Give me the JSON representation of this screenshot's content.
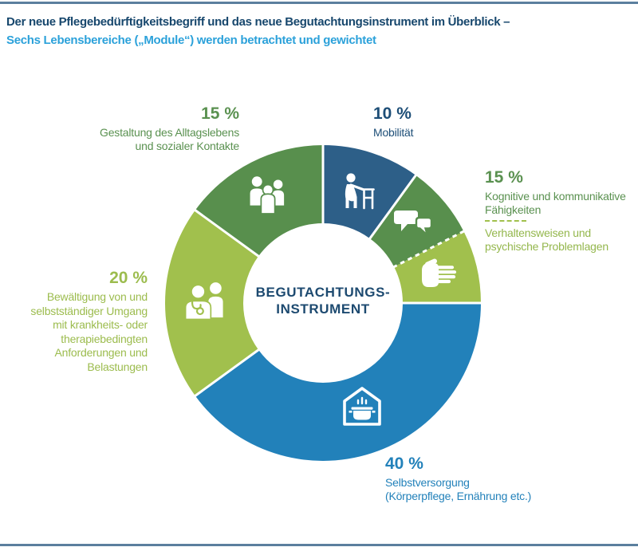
{
  "header": {
    "title_line1": "Der neue Pflegebedürftigkeitsbegriff und das neue Begutachtungsinstrument im Überblick –",
    "title_line2": "Sechs Lebensbereiche („Module“) werden betrachtet und gewichtet"
  },
  "rules": {
    "color": "#5b7f9e"
  },
  "chart_data": {
    "type": "pie",
    "subtype": "donut",
    "title": "Der neue Pflegebedürftigkeitsbegriff und das neue Begutachtungsinstrument im Überblick – Sechs Lebensbereiche („Module“) werden betrachtet und gewichtet",
    "center_label": {
      "line1": "BEGUTACHTUNGS-",
      "line2": "INSTRUMENT"
    },
    "start_angle_deg": 0,
    "direction": "clockwise",
    "legend_position": "around",
    "segments": [
      {
        "label": "Mobilität",
        "pct_display": "10 %",
        "value": 10,
        "color": "#2d5f88",
        "icon": "walker-icon"
      },
      {
        "label": "Kognitive und kommunikative Fähigkeiten",
        "pct_display": "15 %",
        "value": 7.5,
        "color": "#588f4d",
        "icon": "speech-bubbles-icon"
      },
      {
        "label": "Verhaltensweisen und psychische Problemlagen",
        "pct_display": "15 %",
        "value": 7.5,
        "color": "#a1c04d",
        "icon": "hand-icon",
        "boundary_before": "dashed"
      },
      {
        "label": "Selbstversorgung (Körperpflege, Ernährung etc.)",
        "pct_display": "40 %",
        "value": 40,
        "color": "#2281ba",
        "icon": "house-pot-icon"
      },
      {
        "label": "Bewältigung von und selbstständiger Umgang mit krankheits- oder therapiebedingten Anforderungen und Belastungen",
        "pct_display": "20 %",
        "value": 20,
        "color": "#a1c04d",
        "icon": "doctor-patient-icon"
      },
      {
        "label": "Gestaltung des Alltagslebens und sozialer Kontakte",
        "pct_display": "15 %",
        "value": 15,
        "color": "#588f4d",
        "icon": "people-group-icon"
      }
    ]
  },
  "callouts": {
    "alltag": {
      "pct": "15 %",
      "lines": [
        "Gestaltung des Alltagslebens",
        "und sozialer Kontakte"
      ]
    },
    "mobilitaet": {
      "pct": "10 %",
      "lines": [
        "Mobilität"
      ]
    },
    "kognitiv": {
      "pct": "15 %",
      "lines": [
        "Kognitive und kommunikative",
        "Fähigkeiten"
      ],
      "lines_sub": [
        "Verhaltensweisen und",
        "psychische Problemlagen"
      ]
    },
    "bewaeltigung": {
      "pct": "20 %",
      "lines": [
        "Bewältigung von und",
        "selbstständiger Umgang",
        "mit krankheits- oder",
        "therapiebedingten",
        "Anforderungen und",
        "Belastungen"
      ]
    },
    "selbstversorgung": {
      "pct": "40 %",
      "lines": [
        "Selbstversorgung",
        "(Körperpflege, Ernährung etc.)"
      ]
    }
  }
}
